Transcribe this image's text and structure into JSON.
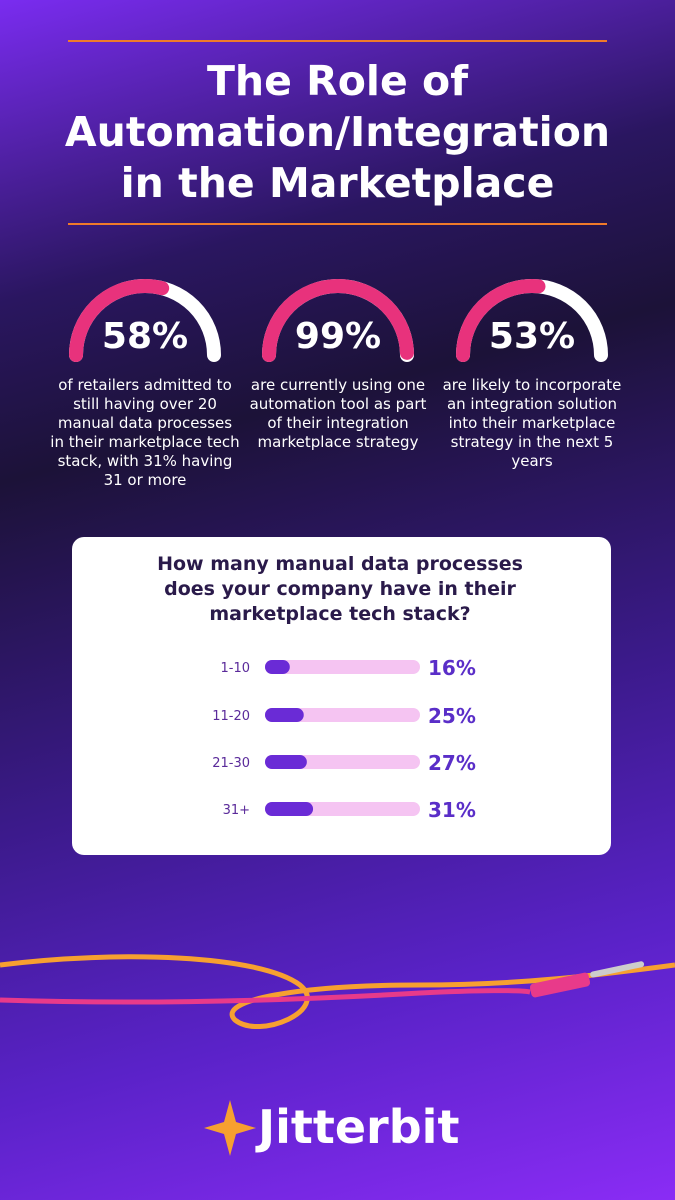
{
  "title": "The Role of Automation/Integration in the Marketplace",
  "chart_data": [
    {
      "type": "gauge",
      "values": [
        58
      ],
      "value_labels": [
        "58%"
      ],
      "ylim": [
        0,
        100
      ],
      "caption": "of retailers admitted to still having over 20 manual data processes in their marketplace tech stack, with 31% having 31 or more",
      "color": "#e8327c"
    },
    {
      "type": "gauge",
      "values": [
        99
      ],
      "value_labels": [
        "99%"
      ],
      "ylim": [
        0,
        100
      ],
      "caption": "are currently using one automation tool as part of their integration marketplace strategy",
      "color": "#e8327c"
    },
    {
      "type": "gauge",
      "values": [
        53
      ],
      "value_labels": [
        "53%"
      ],
      "ylim": [
        0,
        100
      ],
      "caption": "are likely to incorporate an integration solution into their marketplace strategy in the next 5 years",
      "color": "#e8327c"
    },
    {
      "type": "bar",
      "orientation": "horizontal",
      "title": "How many manual data processes does your company have in their marketplace tech stack?",
      "categories": [
        "1-10",
        "11-20",
        "21-30",
        "31+"
      ],
      "values": [
        16,
        25,
        27,
        31
      ],
      "value_labels": [
        "16%",
        "25%",
        "27%",
        "31%"
      ],
      "xlim": [
        0,
        100
      ],
      "color": "#6a2bd6",
      "track_color": "#f5c4f2"
    }
  ],
  "logo": "Jitterbit"
}
